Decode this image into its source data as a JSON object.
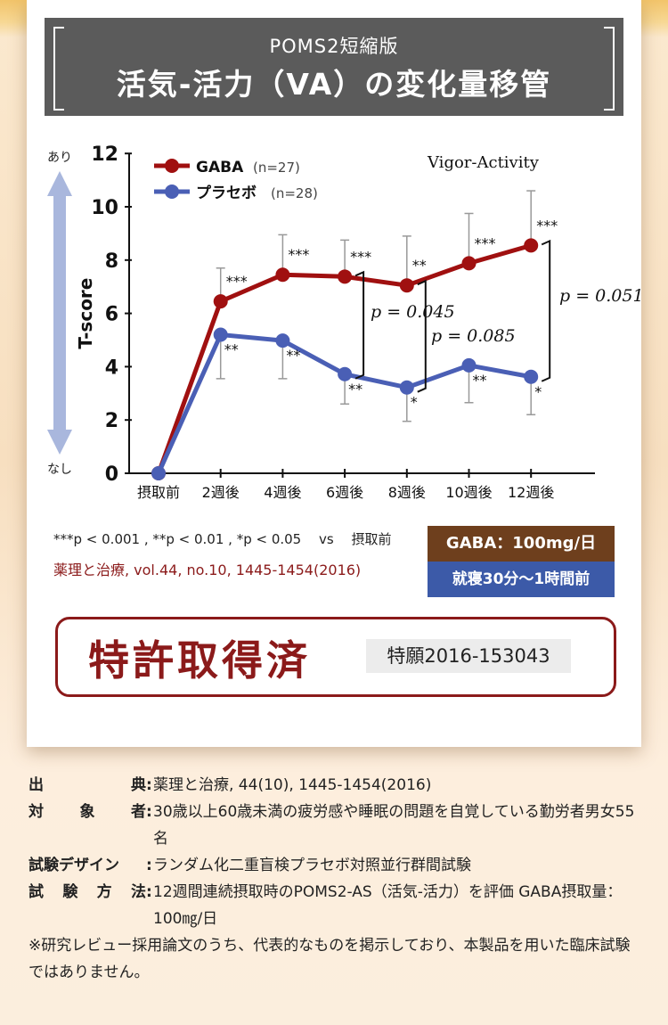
{
  "header": {
    "subtitle": "POMS2短縮版",
    "title": "活気-活力（VA）の変化量移管"
  },
  "side_labels": {
    "top": "あり",
    "bottom": "なし"
  },
  "chart_data": {
    "type": "line",
    "inset_label": "Vigor-Activity",
    "ylabel": "T-score",
    "ylim": [
      0,
      12
    ],
    "yticks": [
      "0",
      "2",
      "4",
      "6",
      "8",
      "10",
      "12"
    ],
    "categories": [
      "摂取前",
      "2週後",
      "4週後",
      "6週後",
      "8週後",
      "10週後",
      "12週後"
    ],
    "series": [
      {
        "name": "GABA",
        "n": "(n=27)",
        "color": "#a01010",
        "values": [
          0,
          6.45,
          7.45,
          7.38,
          7.05,
          7.88,
          8.55
        ],
        "err_hi": [
          null,
          7.7,
          8.95,
          8.75,
          8.9,
          9.75,
          10.6
        ],
        "err_lo": [
          null,
          null,
          null,
          null,
          null,
          null,
          null
        ],
        "sig": [
          "",
          "***",
          "***",
          "***",
          "**",
          "***",
          "***"
        ]
      },
      {
        "name": "プラセボ",
        "n": "(n=28)",
        "color": "#4a5fb5",
        "values": [
          0,
          5.2,
          4.98,
          3.72,
          3.22,
          4.05,
          3.62
        ],
        "err_hi": [
          null,
          null,
          null,
          null,
          null,
          null,
          null
        ],
        "err_lo": [
          null,
          3.55,
          3.55,
          2.6,
          1.95,
          2.65,
          2.2
        ],
        "sig": [
          "",
          "**",
          "**",
          "**",
          "*",
          "**",
          "*"
        ]
      }
    ],
    "pvalues": [
      {
        "between": "6週後",
        "text": "p = 0.045"
      },
      {
        "between": "8週後",
        "text": "p = 0.085"
      },
      {
        "between": "12週後",
        "text": "p = 0.051"
      }
    ]
  },
  "footnote": {
    "stats": "***p < 0.001 , **p < 0.01 , *p < 0.05　 vs　 摂取前",
    "reference": "薬理と治療, vol.44, no.10, 1445-1454(2016)"
  },
  "dose": {
    "amount": "GABA：100mg/日",
    "timing": "就寝30分〜1時間前"
  },
  "patent": {
    "status": "特許取得済",
    "number": "特願2016-153043"
  },
  "notes": [
    {
      "label": "出典",
      "value": "薬理と治療, 44(10), 1445-1454(2016)"
    },
    {
      "label": "対象者",
      "value": "30歳以上60歳未満の疲労感や睡眠の問題を自覚している勤労者男女55名"
    },
    {
      "label": "試験デザイン",
      "value": "ランダム化二重盲検プラセボ対照並行群間試験"
    },
    {
      "label": "試験方法",
      "value": "12週間連続摂取時のPOMS2-AS（活気-活力）を評価 GABA摂取量：100㎎/日"
    }
  ],
  "remark": "※研究レビュー採用論文のうち、代表的なものを掲示しており、本製品を用いた臨床試験ではありません。"
}
